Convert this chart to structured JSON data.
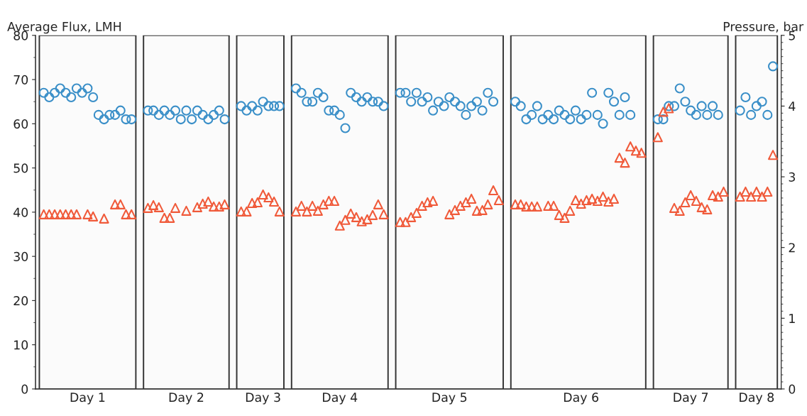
{
  "chart_data": {
    "type": "scatter",
    "ylabel": "Average Flux, LMH",
    "y2label": "Pressure, bar",
    "ylim": [
      0,
      80
    ],
    "yticks": [
      0,
      10,
      20,
      30,
      40,
      50,
      60,
      70,
      80
    ],
    "y2lim": [
      0,
      5
    ],
    "y2ticks": [
      0,
      1,
      2,
      3,
      4,
      5
    ],
    "categories": [
      null,
      null,
      null,
      null,
      null,
      null,
      null,
      null,
      "Day 1",
      null,
      null,
      null,
      null,
      null,
      null,
      null,
      null,
      null,
      null,
      null,
      null,
      null,
      null,
      null,
      null,
      null,
      "Day 2",
      null,
      null,
      null,
      null,
      null,
      null,
      null,
      null,
      null,
      null,
      null,
      null,
      null,
      "Day 3",
      null,
      null,
      null,
      null,
      null,
      null,
      null,
      null,
      null,
      null,
      null,
      null,
      null,
      "Day 4",
      null,
      null,
      null,
      null,
      null,
      null,
      null,
      null,
      null,
      null,
      null,
      null,
      null,
      null,
      null,
      null,
      null,
      null,
      null,
      "Day 5",
      null,
      null,
      null,
      null,
      null,
      null,
      null,
      null,
      null,
      null,
      null,
      null,
      null,
      null,
      null,
      null,
      null,
      null,
      null,
      null,
      null,
      null,
      null,
      "Day 6",
      null,
      null,
      null,
      null,
      null,
      null,
      null,
      null,
      null,
      null,
      null,
      null,
      null,
      null,
      null,
      null,
      null,
      null,
      null,
      "Day 7",
      null,
      null,
      null,
      null,
      null,
      null,
      null,
      null,
      null,
      null,
      null,
      "Day 8",
      null,
      null,
      null
    ],
    "series": [
      {
        "color": "#3a8fc8",
        "marker": "circle",
        "values": [
          67,
          66,
          67,
          68,
          67,
          66,
          68,
          67,
          68,
          66,
          62,
          61,
          62,
          62,
          63,
          61,
          61,
          null,
          null,
          63,
          63,
          62,
          63,
          62,
          63,
          61,
          63,
          61,
          63,
          62,
          61,
          62,
          63,
          61,
          null,
          null,
          64,
          63,
          64,
          63,
          65,
          64,
          64,
          64,
          null,
          null,
          68,
          67,
          65,
          65,
          67,
          66,
          63,
          63,
          62,
          59,
          67,
          66,
          65,
          66,
          65,
          65,
          64,
          null,
          null,
          67,
          67,
          65,
          67,
          65,
          66,
          63,
          65,
          64,
          66,
          65,
          64,
          62,
          64,
          65,
          63,
          67,
          65,
          null,
          null,
          null,
          65,
          64,
          61,
          62,
          64,
          61,
          62,
          61,
          63,
          62,
          61,
          63,
          61,
          62,
          67,
          62,
          60,
          67,
          65,
          62,
          66,
          62,
          null,
          null,
          null,
          null,
          61,
          61,
          64,
          64,
          68,
          65,
          63,
          62,
          64,
          62,
          64,
          62,
          null,
          null,
          null,
          63,
          66,
          62,
          64,
          65,
          62,
          73
        ]
      },
      {
        "color": "#f05a3a",
        "marker": "triangle",
        "axis": "y2",
        "values": [
          2.47,
          2.47,
          2.47,
          2.47,
          2.47,
          2.47,
          2.47,
          null,
          2.47,
          2.44,
          null,
          2.41,
          null,
          2.61,
          2.61,
          2.47,
          2.47,
          null,
          null,
          2.56,
          2.6,
          2.57,
          2.42,
          2.42,
          2.56,
          null,
          2.52,
          null,
          2.57,
          2.62,
          2.65,
          2.58,
          2.58,
          2.61,
          null,
          null,
          2.51,
          2.51,
          2.63,
          2.64,
          2.75,
          2.71,
          2.65,
          2.51,
          null,
          null,
          2.51,
          2.59,
          2.51,
          2.59,
          2.52,
          2.61,
          2.66,
          2.66,
          2.31,
          2.39,
          2.48,
          2.43,
          2.37,
          2.4,
          2.46,
          2.61,
          2.47,
          null,
          null,
          2.36,
          2.36,
          2.43,
          2.49,
          2.59,
          2.64,
          2.66,
          null,
          null,
          2.47,
          2.53,
          2.59,
          2.64,
          2.69,
          2.52,
          2.53,
          2.61,
          2.81,
          2.67,
          null,
          null,
          2.61,
          2.61,
          2.58,
          2.58,
          2.58,
          null,
          2.59,
          2.59,
          2.46,
          2.42,
          2.52,
          2.67,
          2.62,
          2.67,
          2.69,
          2.66,
          2.72,
          2.65,
          2.69,
          3.27,
          3.2,
          3.43,
          3.37,
          3.34,
          null,
          null,
          3.56,
          3.92,
          3.97,
          2.56,
          2.52,
          2.64,
          2.74,
          2.66,
          2.57,
          2.54,
          2.74,
          2.72,
          2.79,
          null,
          null,
          2.72,
          2.79,
          2.72,
          2.79,
          2.72,
          2.79,
          3.31
        ]
      }
    ]
  }
}
